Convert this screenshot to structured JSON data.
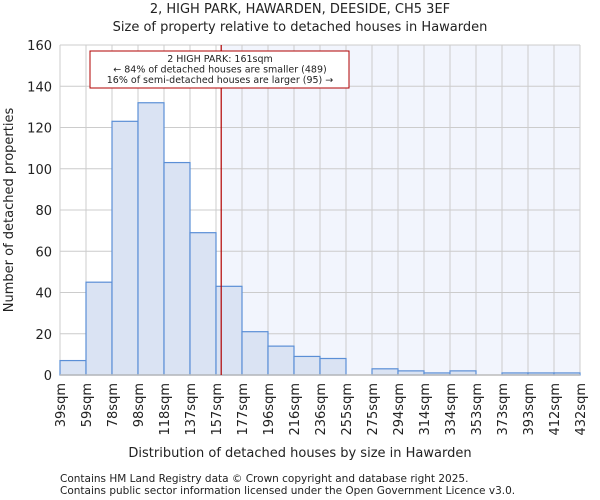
{
  "chart_data": {
    "type": "bar",
    "title": "2, HIGH PARK, HAWARDEN, DEESIDE, CH5 3EF",
    "subtitle": "Size of property relative to detached houses in Hawarden",
    "xlabel": "Distribution of detached houses by size in Hawarden",
    "ylabel": "Number of detached properties",
    "ylim": [
      0,
      160
    ],
    "yticks": [
      0,
      20,
      40,
      60,
      80,
      100,
      120,
      140,
      160
    ],
    "tick_labels": [
      "39sqm",
      "59sqm",
      "78sqm",
      "98sqm",
      "118sqm",
      "137sqm",
      "157sqm",
      "177sqm",
      "196sqm",
      "216sqm",
      "236sqm",
      "255sqm",
      "275sqm",
      "294sqm",
      "314sqm",
      "334sqm",
      "353sqm",
      "373sqm",
      "393sqm",
      "412sqm",
      "432sqm"
    ],
    "values": [
      7,
      45,
      123,
      132,
      103,
      69,
      43,
      21,
      14,
      9,
      8,
      0,
      3,
      2,
      1,
      2,
      0,
      1,
      1,
      1
    ],
    "marker_value": 161,
    "annotation": [
      "2 HIGH PARK: 161sqm",
      "← 84% of detached houses are smaller (489)",
      "16% of semi-detached houses are larger (95) →"
    ],
    "grid": true,
    "colors": {
      "bar_fill": "#dae3f3",
      "bar_edge": "#5b8fd6",
      "marker": "#b00000",
      "shade": "#f2f5fd",
      "grid": "#cccccc"
    }
  },
  "footer": [
    "Contains HM Land Registry data © Crown copyright and database right 2025.",
    "Contains public sector information licensed under the Open Government Licence v3.0."
  ]
}
